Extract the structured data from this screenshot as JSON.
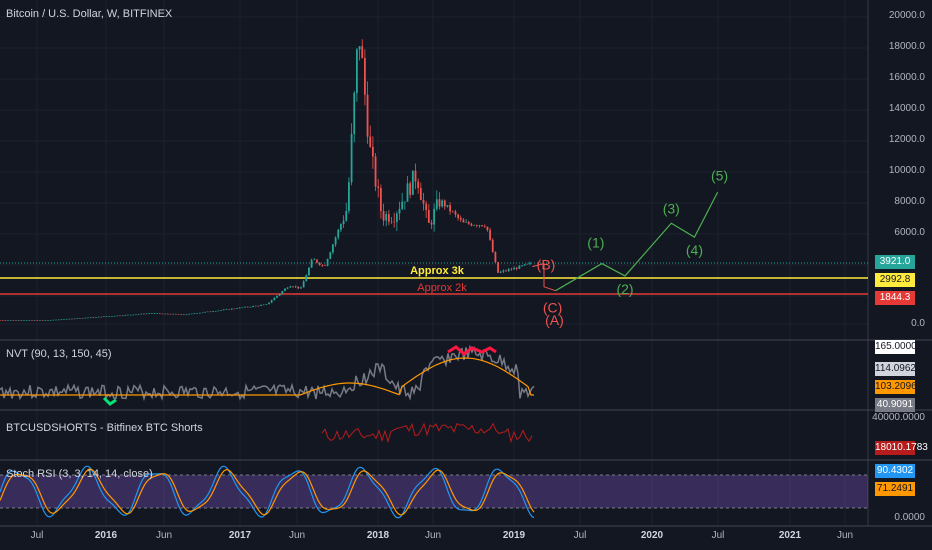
{
  "header": {
    "symbol_title": "Bitcoin / U.S. Dollar, W, BITFINEX",
    "nvt_title": "NVT (90, 13, 150, 45)",
    "shorts_title": "BTCUSDSHORTS - Bitfinex BTC Shorts",
    "stoch_title": "Stoch RSI (3, 3, 14, 14, close)"
  },
  "price_axis": {
    "labels": [
      "20000.0",
      "18000.0",
      "16000.0",
      "14000.0",
      "12000.0",
      "10000.0",
      "8000.0",
      "6000.0",
      "0.0"
    ]
  },
  "price_tags": [
    {
      "key": "last",
      "value": "3921.0",
      "bg": "#26a69a",
      "fg": "#ffffff"
    },
    {
      "key": "approx3k",
      "value": "2992.8",
      "bg": "#ffeb3b",
      "fg": "#131722"
    },
    {
      "key": "approx2k",
      "value": "1844.3",
      "bg": "#e53935",
      "fg": "#ffffff"
    }
  ],
  "nvt_axis": {
    "tags": [
      {
        "value": "165.0000",
        "bg": "#ffffff",
        "fg": "#131722"
      },
      {
        "value": "114.0962",
        "bg": "#d1d4dc",
        "fg": "#131722"
      },
      {
        "value": "103.2096",
        "bg": "#ff9800",
        "fg": "#131722"
      },
      {
        "value": "40.9091",
        "bg": "#787b86",
        "fg": "#ffffff"
      }
    ]
  },
  "shorts_axis": {
    "labels": [
      "40000.0000"
    ],
    "tag": {
      "value": "18010.1783",
      "bg": "#b71c1c",
      "fg": "#ffffff"
    }
  },
  "stoch_axis": {
    "labels": [
      "0.0000"
    ],
    "tags": [
      {
        "value": "90.4302",
        "bg": "#2196f3",
        "fg": "#ffffff"
      },
      {
        "value": "71.2491",
        "bg": "#ff9800",
        "fg": "#131722"
      }
    ]
  },
  "time_axis": {
    "labels": [
      {
        "text": "Jul",
        "bold": false
      },
      {
        "text": "2016",
        "bold": true
      },
      {
        "text": "Jun",
        "bold": false
      },
      {
        "text": "2017",
        "bold": true
      },
      {
        "text": "Jun",
        "bold": false
      },
      {
        "text": "2018",
        "bold": true
      },
      {
        "text": "Jun",
        "bold": false
      },
      {
        "text": "2019",
        "bold": true
      },
      {
        "text": "Jul",
        "bold": false
      },
      {
        "text": "2020",
        "bold": true
      },
      {
        "text": "Jul",
        "bold": false
      },
      {
        "text": "2021",
        "bold": true
      },
      {
        "text": "Jun",
        "bold": false
      }
    ]
  },
  "annotations": {
    "approx3k": "Approx 3k",
    "approx2k": "Approx 2k",
    "corrective": [
      "(A)",
      "(B)",
      "(C)"
    ],
    "impulse": [
      "(1)",
      "(2)",
      "(3)",
      "(4)",
      "(5)"
    ]
  },
  "colors": {
    "background": "#131722",
    "up": "#26a69a",
    "down": "#ef5350",
    "support_3k": "#ffeb3b",
    "support_2k": "#e53935",
    "impulse_wave": "#4caf50",
    "corrective_wave": "#ef5350",
    "nvt_line": "#787b86",
    "nvt_signal": "#ff9800",
    "shorts_line": "#b71c1c",
    "stoch_k": "#2196f3",
    "stoch_d": "#ff9800",
    "stoch_band": "#7e57c2"
  },
  "chart_data": {
    "type": "candlestick",
    "interval": "W",
    "exchange": "BITFINEX",
    "y_scale": "log",
    "ylim": [
      0,
      20000
    ],
    "x_range": [
      "2015-06",
      "2021-07"
    ],
    "price_points": [
      {
        "date": "2015-05",
        "close": 240
      },
      {
        "date": "2015-09",
        "close": 235
      },
      {
        "date": "2016-01",
        "close": 430
      },
      {
        "date": "2016-06",
        "close": 690
      },
      {
        "date": "2016-09",
        "close": 610
      },
      {
        "date": "2017-01",
        "close": 980
      },
      {
        "date": "2017-04",
        "close": 1250
      },
      {
        "date": "2017-06",
        "close": 2500
      },
      {
        "date": "2017-07",
        "close": 2300
      },
      {
        "date": "2017-08",
        "close": 4200
      },
      {
        "date": "2017-09",
        "close": 3700
      },
      {
        "date": "2017-11",
        "close": 7500
      },
      {
        "date": "2017-12",
        "close": 19000
      },
      {
        "date": "2018-01",
        "close": 11000
      },
      {
        "date": "2018-02",
        "close": 7000
      },
      {
        "date": "2018-03",
        "close": 7000
      },
      {
        "date": "2018-05",
        "close": 9700
      },
      {
        "date": "2018-06",
        "close": 6300
      },
      {
        "date": "2018-07",
        "close": 8000
      },
      {
        "date": "2018-09",
        "close": 6500
      },
      {
        "date": "2018-11",
        "close": 6400
      },
      {
        "date": "2018-12",
        "close": 3300
      },
      {
        "date": "2019-02",
        "close": 3700
      },
      {
        "date": "2019-03",
        "close": 3921
      }
    ],
    "support_levels": [
      {
        "label": "Approx 3k",
        "value": 2992.8
      },
      {
        "label": "Approx 2k",
        "value": 1844.3
      }
    ],
    "last_price": 3921.0,
    "projection": {
      "corrective": [
        {
          "label": "(B)",
          "date": "2019-04",
          "value": 3900
        },
        {
          "label": "(A)",
          "date": "2019-03",
          "value": 2400
        },
        {
          "label": "(C)",
          "date": "2019-05",
          "value": 2150
        }
      ],
      "impulse": [
        {
          "label": "(1)",
          "date": "2019-09",
          "value": 3900
        },
        {
          "label": "(2)",
          "date": "2019-11",
          "value": 3100
        },
        {
          "label": "(3)",
          "date": "2020-03",
          "value": 6500
        },
        {
          "label": "(4)",
          "date": "2020-05",
          "value": 5600
        },
        {
          "label": "(5)",
          "date": "2020-07",
          "value": 8500
        }
      ]
    },
    "indicators": [
      {
        "name": "NVT (90, 13, 150, 45)",
        "last_values": [
          165.0,
          114.0962,
          103.2096,
          40.9091
        ]
      },
      {
        "name": "BTCUSDSHORTS - Bitfinex BTC Shorts",
        "last_value": 18010.1783
      },
      {
        "name": "Stoch RSI (3, 3, 14, 14, close)",
        "last_values": [
          90.4302,
          71.2491
        ]
      }
    ]
  }
}
